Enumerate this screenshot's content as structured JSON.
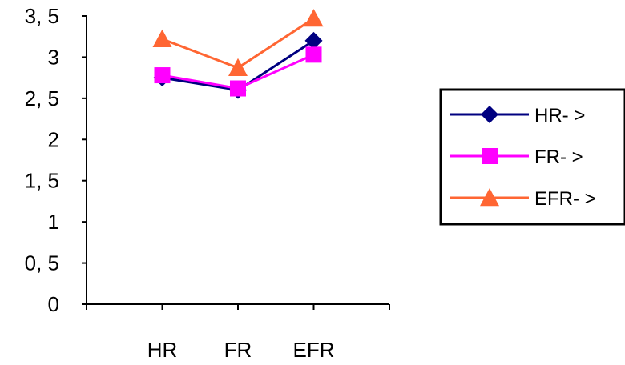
{
  "chart_data": {
    "type": "line",
    "title": "",
    "xlabel": "",
    "ylabel": "",
    "categories": [
      "HR",
      "FR",
      "EFR"
    ],
    "ylim": [
      0,
      3.5
    ],
    "yticks": [
      0,
      0.5,
      1,
      1.5,
      2,
      2.5,
      3,
      3.5
    ],
    "ytick_labels": [
      "0",
      "0, 5",
      "1",
      "1, 5",
      "2",
      "2, 5",
      "3",
      "3, 5"
    ],
    "grid": false,
    "legend_position": "right",
    "series": [
      {
        "name": "HR- >",
        "values": [
          2.75,
          2.6,
          3.2
        ],
        "color": "#000080",
        "marker": "diamond"
      },
      {
        "name": "FR- >",
        "values": [
          2.78,
          2.62,
          3.03
        ],
        "color": "#FF00FF",
        "marker": "square"
      },
      {
        "name": "EFR- >",
        "values": [
          3.22,
          2.87,
          3.47
        ],
        "color": "#FF6633",
        "marker": "triangle"
      }
    ]
  }
}
